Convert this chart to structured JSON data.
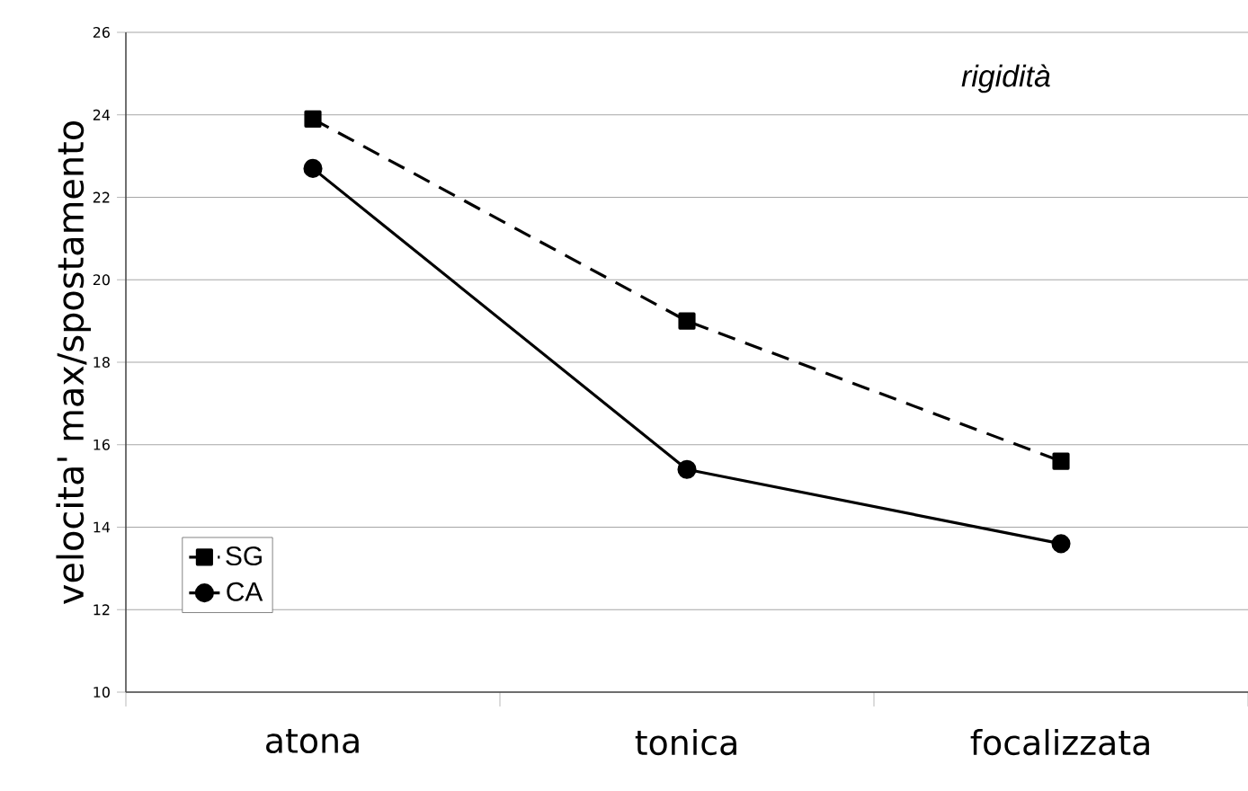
{
  "chart_data": {
    "type": "line",
    "ylabel": "velocita' max/spostamento",
    "annotations": [
      "rigidità"
    ],
    "categories": [
      "atona",
      "tonica",
      "focalizzata"
    ],
    "series": [
      {
        "name": "SG",
        "color": "#000000",
        "values": [
          23.9,
          19.0,
          15.6
        ],
        "marker": "square",
        "line_style": "dashed"
      },
      {
        "name": "CA",
        "color": "#000000",
        "values": [
          22.7,
          15.4,
          13.6
        ],
        "marker": "circle",
        "line_style": "solid"
      }
    ],
    "ylim": [
      10,
      26
    ],
    "yticks": [
      10,
      12,
      14,
      16,
      18,
      20,
      22,
      24,
      26
    ],
    "grid": "y",
    "legend": "bottom left"
  }
}
